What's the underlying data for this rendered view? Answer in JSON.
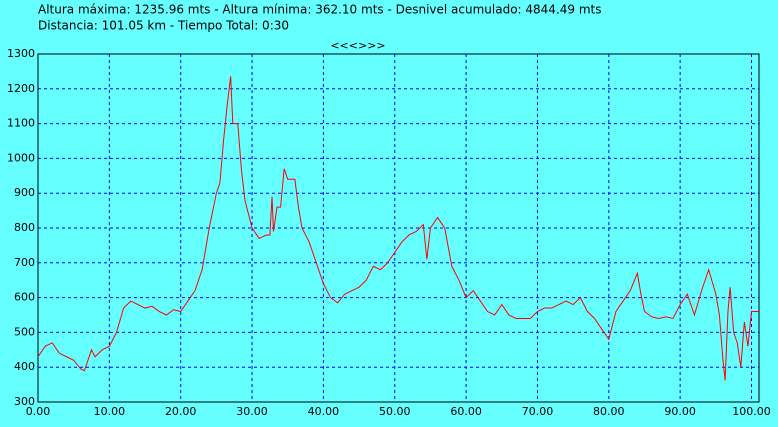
{
  "chart_data": {
    "type": "line",
    "title": "Altura máxima: 1235.96 mts - Altura mínima: 362.10 mts - Desnivel acumulado: 4844.49 mts",
    "subtitle": "Distancia: 101.05 km - Tiempo Total: 0:30",
    "annotations": [
      "<<<>>>"
    ],
    "color": "#ff0000",
    "grid": true,
    "grid_color": "#0000ff",
    "x": [
      0,
      1,
      2,
      3,
      4,
      5,
      6,
      6.5,
      7,
      7.5,
      8,
      9,
      10,
      11,
      12,
      13,
      14,
      15,
      16,
      17,
      18,
      19,
      20,
      21,
      22,
      23,
      24,
      25,
      25.5,
      26,
      26.5,
      27,
      27.3,
      28,
      28.5,
      29,
      30,
      31,
      32,
      32.5,
      32.8,
      33,
      33.5,
      34,
      34.5,
      35,
      36,
      36.5,
      37,
      38,
      39,
      40,
      41,
      42,
      43,
      44,
      45,
      46,
      47,
      48,
      49,
      50,
      51,
      52,
      53,
      54,
      54.5,
      55,
      56,
      57,
      58,
      59,
      60,
      61,
      62,
      63,
      64,
      65,
      66,
      67,
      68,
      69,
      70,
      71,
      72,
      73,
      74,
      75,
      76,
      77,
      78,
      79,
      80,
      81,
      82,
      83,
      84,
      84.5,
      85,
      86,
      87,
      88,
      89,
      90,
      91,
      92,
      93,
      94,
      95,
      95.5,
      96,
      96.3,
      96.7,
      97,
      97.5,
      98,
      98.5,
      99,
      99.5,
      100,
      101.05
    ],
    "values": [
      430,
      460,
      470,
      440,
      430,
      420,
      395,
      390,
      420,
      450,
      430,
      450,
      460,
      500,
      570,
      590,
      580,
      570,
      575,
      560,
      550,
      565,
      560,
      590,
      620,
      680,
      800,
      900,
      930,
      1050,
      1150,
      1236,
      1100,
      1100,
      970,
      880,
      800,
      770,
      780,
      780,
      890,
      790,
      860,
      860,
      970,
      940,
      940,
      860,
      800,
      760,
      700,
      640,
      600,
      585,
      610,
      620,
      630,
      650,
      690,
      680,
      700,
      730,
      760,
      780,
      790,
      810,
      710,
      800,
      830,
      800,
      690,
      650,
      600,
      620,
      590,
      560,
      550,
      580,
      550,
      540,
      540,
      540,
      560,
      570,
      570,
      580,
      590,
      580,
      600,
      560,
      540,
      510,
      480,
      560,
      590,
      620,
      670,
      610,
      560,
      545,
      540,
      545,
      540,
      580,
      610,
      550,
      620,
      680,
      610,
      550,
      420,
      362,
      560,
      630,
      500,
      470,
      400,
      530,
      460,
      560,
      560
    ],
    "xlim": [
      0,
      101.05
    ],
    "xticks": [
      {
        "value": 0,
        "label": "0.00"
      },
      {
        "value": 10,
        "label": "10.00"
      },
      {
        "value": 20,
        "label": "20.00"
      },
      {
        "value": 30,
        "label": "30.00"
      },
      {
        "value": 40,
        "label": "40.00"
      },
      {
        "value": 50,
        "label": "50.00"
      },
      {
        "value": 60,
        "label": "60.00"
      },
      {
        "value": 70,
        "label": "70.00"
      },
      {
        "value": 80,
        "label": "80.00"
      },
      {
        "value": 90,
        "label": "90.00"
      },
      {
        "value": 100,
        "label": "100.00"
      }
    ],
    "ylim": [
      300,
      1300
    ],
    "yticks": [
      300,
      400,
      500,
      600,
      700,
      800,
      900,
      1000,
      1100,
      1200,
      1300
    ]
  }
}
